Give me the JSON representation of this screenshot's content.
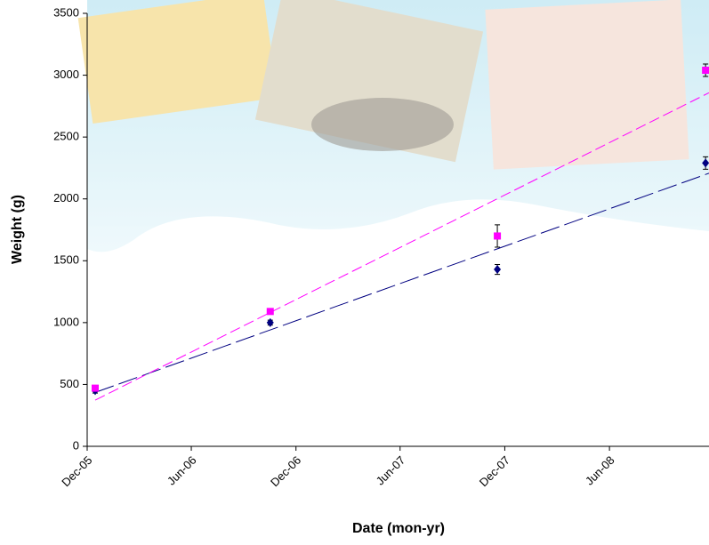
{
  "chart_data": {
    "type": "scatter",
    "x_label": "Date (mon-yr)",
    "y_label": "Weight (g)",
    "x": [
      38701,
      39007,
      39404,
      39768
    ],
    "xlim": [
      38687,
      39774
    ],
    "xticks": [
      {
        "value": 38687,
        "label": "Dec-05"
      },
      {
        "value": 38869,
        "label": "Jun-06"
      },
      {
        "value": 39052,
        "label": "Dec-06"
      },
      {
        "value": 39234,
        "label": "Jun-07"
      },
      {
        "value": 39417,
        "label": "Dec-07"
      },
      {
        "value": 39600,
        "label": "Jun-08"
      }
    ],
    "ylim": [
      0,
      3500
    ],
    "yticks": [
      0,
      500,
      1000,
      1500,
      2000,
      2500,
      3000,
      3500
    ],
    "trendline": true,
    "series": [
      {
        "color": "#000080",
        "marker": "diamond",
        "values": [
          450,
          1000,
          1430,
          2290
        ],
        "errors": [
          20,
          20,
          40,
          50
        ]
      },
      {
        "color": "#ff00ff",
        "marker": "square",
        "values": [
          470,
          1090,
          1700,
          3040
        ],
        "errors": [
          20,
          20,
          90,
          50
        ]
      }
    ]
  }
}
